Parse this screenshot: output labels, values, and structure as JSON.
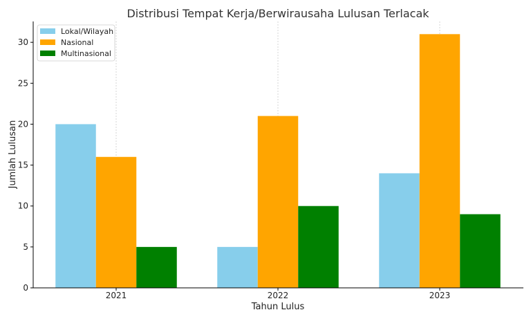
{
  "chart_data": {
    "type": "bar",
    "title": "Distribusi Tempat Kerja/Berwirausaha Lulusan Terlacak",
    "xlabel": "Tahun Lulus",
    "ylabel": "Jumlah Lulusan",
    "categories": [
      "2021",
      "2022",
      "2023"
    ],
    "series": [
      {
        "name": "Lokal/Wilayah",
        "color": "#87CEEB",
        "values": [
          20,
          5,
          14
        ]
      },
      {
        "name": "Nasional",
        "color": "#FFA500",
        "values": [
          16,
          21,
          31
        ]
      },
      {
        "name": "Multinasional",
        "color": "#008000",
        "values": [
          5,
          10,
          9
        ]
      }
    ],
    "ylim": [
      0,
      32.55
    ],
    "yticks": [
      0,
      5,
      10,
      15,
      20,
      25,
      30
    ],
    "grid": "x-only, dashed",
    "legend_position": "top-left"
  }
}
